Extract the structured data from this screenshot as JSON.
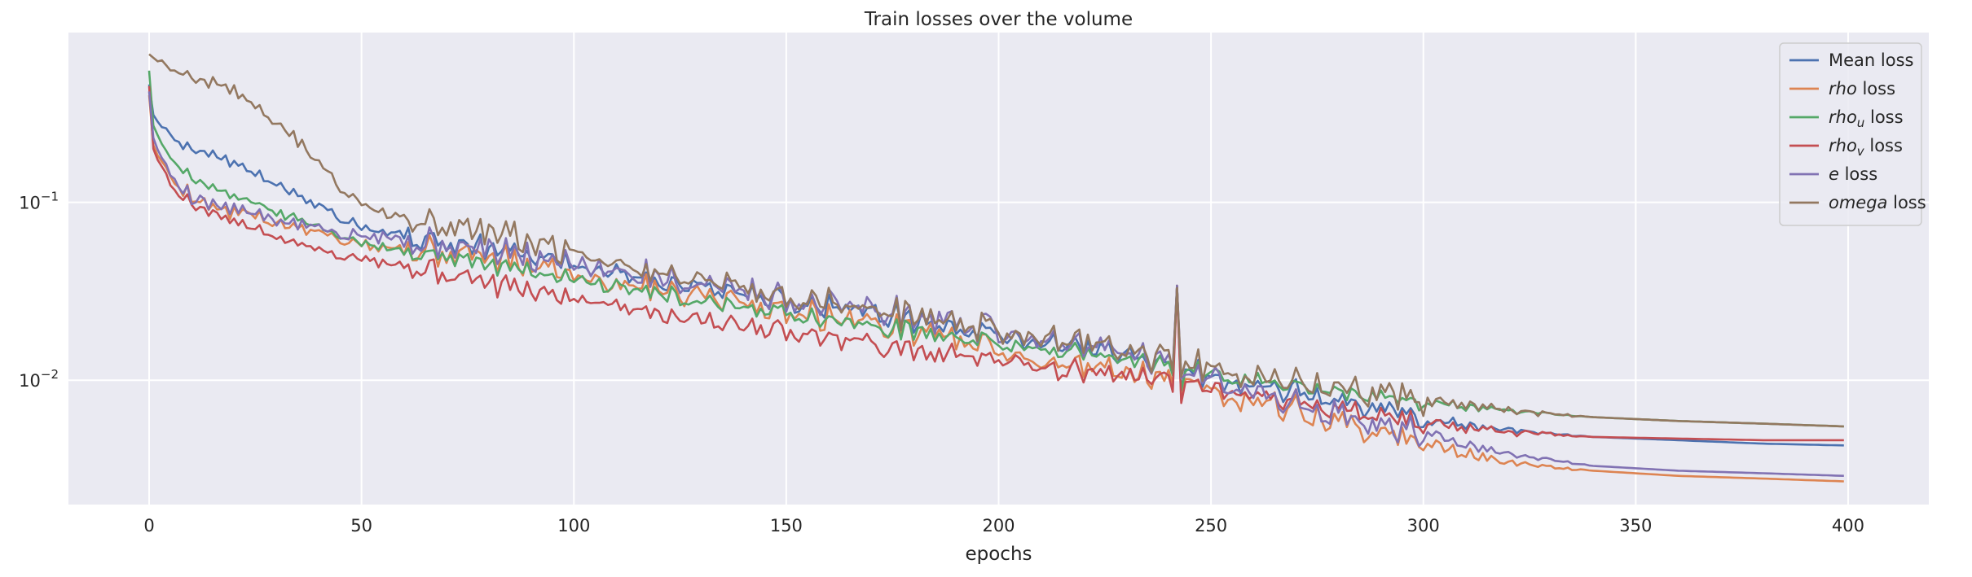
{
  "chart_data": {
    "type": "line",
    "title": "Train losses over the volume",
    "xlabel": "epochs",
    "ylabel": "",
    "xlim": [
      -19,
      419
    ],
    "ylim": [
      0.002,
      0.9
    ],
    "yscale": "log",
    "grid": true,
    "legend_position": "top-right",
    "x_ticks": [
      0,
      50,
      100,
      150,
      200,
      250,
      300,
      350,
      400
    ],
    "x_tick_labels": [
      "0",
      "50",
      "100",
      "150",
      "200",
      "250",
      "300",
      "350",
      "400"
    ],
    "y_ticks": [
      0.01,
      0.1
    ],
    "y_tick_labels": [
      {
        "base": "10",
        "exp": "−2"
      },
      {
        "base": "10",
        "exp": "−1"
      }
    ],
    "colors": {
      "background": "#eaeaf2",
      "grid": "#ffffff"
    },
    "series": [
      {
        "name": "Mean loss",
        "color": "#4c72b0",
        "anchors": [
          [
            0,
            0.46
          ],
          [
            1,
            0.31
          ],
          [
            3,
            0.26
          ],
          [
            6,
            0.23
          ],
          [
            10,
            0.205
          ],
          [
            15,
            0.185
          ],
          [
            20,
            0.165
          ],
          [
            25,
            0.145
          ],
          [
            30,
            0.125
          ],
          [
            35,
            0.11
          ],
          [
            40,
            0.095
          ],
          [
            45,
            0.083
          ],
          [
            50,
            0.075
          ],
          [
            60,
            0.066
          ],
          [
            70,
            0.06
          ],
          [
            80,
            0.055
          ],
          [
            90,
            0.05
          ],
          [
            100,
            0.045
          ],
          [
            110,
            0.041
          ],
          [
            120,
            0.037
          ],
          [
            130,
            0.034
          ],
          [
            140,
            0.031
          ],
          [
            150,
            0.028
          ],
          [
            160,
            0.026
          ],
          [
            170,
            0.024
          ],
          [
            180,
            0.022
          ],
          [
            190,
            0.02
          ],
          [
            200,
            0.018
          ],
          [
            210,
            0.0165
          ],
          [
            220,
            0.015
          ],
          [
            230,
            0.0135
          ],
          [
            240,
            0.012
          ],
          [
            250,
            0.0105
          ],
          [
            260,
            0.0095
          ],
          [
            270,
            0.0085
          ],
          [
            280,
            0.0075
          ],
          [
            290,
            0.0068
          ],
          [
            300,
            0.006
          ],
          [
            310,
            0.0056
          ],
          [
            320,
            0.0052
          ],
          [
            340,
            0.0048
          ],
          [
            360,
            0.0046
          ],
          [
            380,
            0.0044
          ],
          [
            399,
            0.0043
          ]
        ],
        "noise": 0.1,
        "offset": 0.0,
        "seed": 11
      },
      {
        "name": "rho loss",
        "color": "#dd8452",
        "anchors": [
          [
            0,
            0.4
          ],
          [
            1,
            0.21
          ],
          [
            3,
            0.16
          ],
          [
            6,
            0.13
          ],
          [
            10,
            0.11
          ],
          [
            15,
            0.095
          ],
          [
            20,
            0.088
          ],
          [
            25,
            0.082
          ],
          [
            30,
            0.077
          ],
          [
            35,
            0.072
          ],
          [
            40,
            0.068
          ],
          [
            45,
            0.064
          ],
          [
            50,
            0.06
          ],
          [
            60,
            0.056
          ],
          [
            70,
            0.052
          ],
          [
            80,
            0.048
          ],
          [
            90,
            0.044
          ],
          [
            100,
            0.04
          ],
          [
            110,
            0.036
          ],
          [
            120,
            0.033
          ],
          [
            130,
            0.03
          ],
          [
            140,
            0.027
          ],
          [
            150,
            0.025
          ],
          [
            160,
            0.023
          ],
          [
            170,
            0.021
          ],
          [
            180,
            0.019
          ],
          [
            190,
            0.017
          ],
          [
            200,
            0.015
          ],
          [
            210,
            0.0135
          ],
          [
            220,
            0.012
          ],
          [
            230,
            0.011
          ],
          [
            240,
            0.01
          ],
          [
            250,
            0.009
          ],
          [
            260,
            0.0078
          ],
          [
            270,
            0.0068
          ],
          [
            280,
            0.0058
          ],
          [
            290,
            0.005
          ],
          [
            300,
            0.0045
          ],
          [
            310,
            0.0038
          ],
          [
            320,
            0.0034
          ],
          [
            340,
            0.0031
          ],
          [
            360,
            0.0029
          ],
          [
            380,
            0.0028
          ],
          [
            399,
            0.0027
          ]
        ],
        "noise": 0.12,
        "offset": 0.0,
        "seed": 23
      },
      {
        "name": "rho_u loss",
        "color": "#55a868",
        "anchors": [
          [
            0,
            0.55
          ],
          [
            1,
            0.27
          ],
          [
            3,
            0.21
          ],
          [
            6,
            0.17
          ],
          [
            10,
            0.14
          ],
          [
            15,
            0.12
          ],
          [
            20,
            0.108
          ],
          [
            25,
            0.098
          ],
          [
            30,
            0.088
          ],
          [
            35,
            0.08
          ],
          [
            40,
            0.073
          ],
          [
            45,
            0.066
          ],
          [
            50,
            0.06
          ],
          [
            60,
            0.054
          ],
          [
            70,
            0.049
          ],
          [
            80,
            0.045
          ],
          [
            90,
            0.041
          ],
          [
            100,
            0.037
          ],
          [
            110,
            0.034
          ],
          [
            120,
            0.031
          ],
          [
            130,
            0.028
          ],
          [
            140,
            0.026
          ],
          [
            150,
            0.024
          ],
          [
            160,
            0.022
          ],
          [
            170,
            0.02
          ],
          [
            180,
            0.019
          ],
          [
            190,
            0.0175
          ],
          [
            200,
            0.016
          ],
          [
            210,
            0.015
          ],
          [
            220,
            0.014
          ],
          [
            230,
            0.013
          ],
          [
            240,
            0.012
          ],
          [
            250,
            0.011
          ],
          [
            260,
            0.0102
          ],
          [
            270,
            0.0093
          ],
          [
            280,
            0.0085
          ],
          [
            290,
            0.008
          ],
          [
            300,
            0.0075
          ],
          [
            310,
            0.0071
          ],
          [
            320,
            0.0067
          ],
          [
            340,
            0.0062
          ],
          [
            360,
            0.0059
          ],
          [
            380,
            0.0057
          ],
          [
            399,
            0.0055
          ]
        ],
        "noise": 0.08,
        "offset": 0.0,
        "seed": 37
      },
      {
        "name": "rho_v loss",
        "color": "#c44e52",
        "anchors": [
          [
            0,
            0.45
          ],
          [
            1,
            0.2
          ],
          [
            3,
            0.15
          ],
          [
            6,
            0.12
          ],
          [
            10,
            0.1
          ],
          [
            15,
            0.088
          ],
          [
            20,
            0.078
          ],
          [
            25,
            0.07
          ],
          [
            30,
            0.064
          ],
          [
            35,
            0.059
          ],
          [
            40,
            0.055
          ],
          [
            45,
            0.052
          ],
          [
            50,
            0.05
          ],
          [
            60,
            0.044
          ],
          [
            70,
            0.039
          ],
          [
            80,
            0.035
          ],
          [
            90,
            0.032
          ],
          [
            100,
            0.03
          ],
          [
            110,
            0.027
          ],
          [
            120,
            0.024
          ],
          [
            130,
            0.022
          ],
          [
            140,
            0.02
          ],
          [
            150,
            0.019
          ],
          [
            160,
            0.0175
          ],
          [
            170,
            0.016
          ],
          [
            180,
            0.0148
          ],
          [
            190,
            0.0138
          ],
          [
            200,
            0.013
          ],
          [
            210,
            0.012
          ],
          [
            220,
            0.011
          ],
          [
            230,
            0.0105
          ],
          [
            240,
            0.01
          ],
          [
            250,
            0.0092
          ],
          [
            260,
            0.0084
          ],
          [
            270,
            0.0077
          ],
          [
            280,
            0.0068
          ],
          [
            290,
            0.0062
          ],
          [
            300,
            0.0058
          ],
          [
            310,
            0.0054
          ],
          [
            320,
            0.0051
          ],
          [
            340,
            0.0048
          ],
          [
            360,
            0.0047
          ],
          [
            380,
            0.0046
          ],
          [
            399,
            0.0046
          ]
        ],
        "noise": 0.1,
        "offset": 0.0,
        "seed": 53
      },
      {
        "name": "e loss",
        "color": "#8172b3",
        "anchors": [
          [
            0,
            0.42
          ],
          [
            1,
            0.23
          ],
          [
            3,
            0.17
          ],
          [
            6,
            0.13
          ],
          [
            10,
            0.11
          ],
          [
            15,
            0.097
          ],
          [
            20,
            0.09
          ],
          [
            25,
            0.085
          ],
          [
            30,
            0.08
          ],
          [
            35,
            0.076
          ],
          [
            40,
            0.072
          ],
          [
            45,
            0.069
          ],
          [
            50,
            0.067
          ],
          [
            60,
            0.062
          ],
          [
            70,
            0.058
          ],
          [
            80,
            0.054
          ],
          [
            90,
            0.05
          ],
          [
            100,
            0.046
          ],
          [
            110,
            0.042
          ],
          [
            120,
            0.038
          ],
          [
            130,
            0.035
          ],
          [
            140,
            0.032
          ],
          [
            150,
            0.029
          ],
          [
            160,
            0.027
          ],
          [
            170,
            0.025
          ],
          [
            180,
            0.023
          ],
          [
            190,
            0.021
          ],
          [
            200,
            0.019
          ],
          [
            210,
            0.0172
          ],
          [
            220,
            0.0155
          ],
          [
            230,
            0.014
          ],
          [
            240,
            0.0125
          ],
          [
            250,
            0.0105
          ],
          [
            260,
            0.0088
          ],
          [
            270,
            0.0075
          ],
          [
            280,
            0.0064
          ],
          [
            290,
            0.0055
          ],
          [
            300,
            0.005
          ],
          [
            310,
            0.0043
          ],
          [
            320,
            0.0038
          ],
          [
            340,
            0.0033
          ],
          [
            360,
            0.0031
          ],
          [
            380,
            0.003
          ],
          [
            399,
            0.0029
          ]
        ],
        "noise": 0.13,
        "offset": 0.0,
        "seed": 71
      },
      {
        "name": "omega loss",
        "color": "#937860",
        "anchors": [
          [
            0,
            0.68
          ],
          [
            2,
            0.62
          ],
          [
            5,
            0.58
          ],
          [
            10,
            0.52
          ],
          [
            15,
            0.47
          ],
          [
            20,
            0.42
          ],
          [
            25,
            0.35
          ],
          [
            30,
            0.29
          ],
          [
            35,
            0.22
          ],
          [
            40,
            0.165
          ],
          [
            45,
            0.125
          ],
          [
            50,
            0.1
          ],
          [
            55,
            0.09
          ],
          [
            60,
            0.082
          ],
          [
            70,
            0.075
          ],
          [
            80,
            0.068
          ],
          [
            90,
            0.06
          ],
          [
            100,
            0.052
          ],
          [
            110,
            0.046
          ],
          [
            120,
            0.041
          ],
          [
            130,
            0.037
          ],
          [
            140,
            0.033
          ],
          [
            150,
            0.03
          ],
          [
            160,
            0.027
          ],
          [
            170,
            0.025
          ],
          [
            180,
            0.023
          ],
          [
            190,
            0.021
          ],
          [
            200,
            0.019
          ],
          [
            210,
            0.0175
          ],
          [
            220,
            0.016
          ],
          [
            230,
            0.0145
          ],
          [
            240,
            0.013
          ],
          [
            250,
            0.0118
          ],
          [
            260,
            0.0108
          ],
          [
            270,
            0.0098
          ],
          [
            280,
            0.009
          ],
          [
            290,
            0.0083
          ],
          [
            300,
            0.0077
          ],
          [
            310,
            0.0072
          ],
          [
            320,
            0.0067
          ],
          [
            340,
            0.0062
          ],
          [
            360,
            0.0059
          ],
          [
            380,
            0.0057
          ],
          [
            399,
            0.0055
          ]
        ],
        "noise": 0.12,
        "offset": 0.0,
        "seed": 97
      }
    ],
    "legend": [
      {
        "pre": "",
        "italic": "rho",
        "sub": "",
        "post": "",
        "plain": "Mean loss"
      },
      {
        "pre": "",
        "italic": "rho",
        "sub": "",
        "post": " loss",
        "plain": ""
      },
      {
        "pre": "",
        "italic": "rho",
        "sub": "u",
        "post": " loss",
        "plain": ""
      },
      {
        "pre": "",
        "italic": "rho",
        "sub": "v",
        "post": " loss",
        "plain": ""
      },
      {
        "pre": "",
        "italic": "e",
        "sub": "",
        "post": " loss",
        "plain": ""
      },
      {
        "pre": "",
        "italic": "omega",
        "sub": "",
        "post": " loss",
        "plain": ""
      }
    ]
  }
}
